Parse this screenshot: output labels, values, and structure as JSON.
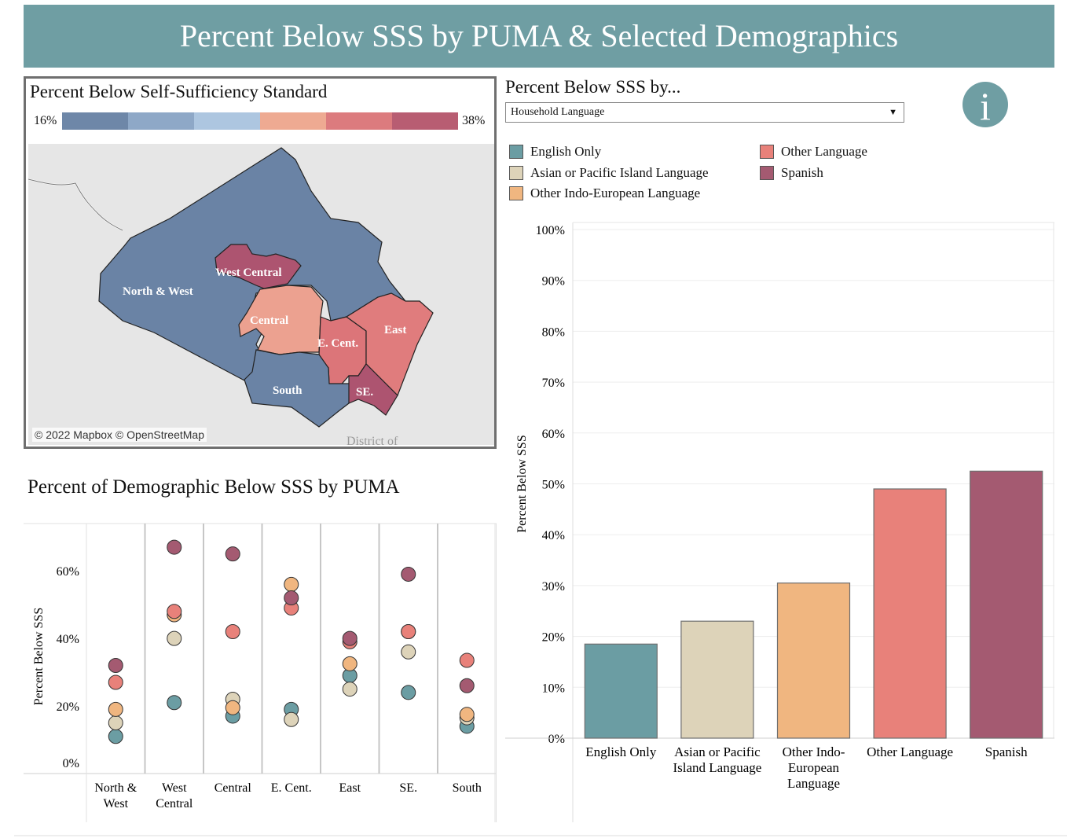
{
  "header": {
    "title": "Percent Below SSS by PUMA & Selected Demographics"
  },
  "map": {
    "title": "Percent Below Self-Sufficiency Standard",
    "legend_min": "16%",
    "legend_max": "38%",
    "ramp_colors": [
      "#6e87a8",
      "#8ea8c7",
      "#adc6e0",
      "#eeaa92",
      "#dc7b7e",
      "#b85d72"
    ],
    "credit": "© 2022 Mapbox  © OpenStreetMap",
    "faded_label": "District of",
    "regions": [
      {
        "label": "North & West",
        "color": "#6a83a5"
      },
      {
        "label": "West Central",
        "color": "#ad5470"
      },
      {
        "label": "Central",
        "color": "#eca190"
      },
      {
        "label": "E. Cent.",
        "color": "#dc7579"
      },
      {
        "label": "East",
        "color": "#e07c7d"
      },
      {
        "label": "South",
        "color": "#6a83a5"
      },
      {
        "label": "SE.",
        "color": "#ad5470"
      }
    ]
  },
  "selector": {
    "title": "Percent Below SSS by...",
    "selected": "Household Language"
  },
  "info": {
    "glyph": "i"
  },
  "legend": [
    {
      "label": "English Only",
      "color": "#6b9da3"
    },
    {
      "label": "Asian or Pacific Island Language",
      "color": "#ddd3b9"
    },
    {
      "label": "Other Indo-European Language",
      "color": "#f0b680"
    },
    {
      "label": "Other Language",
      "color": "#e8817a"
    },
    {
      "label": "Spanish",
      "color": "#a45a71"
    }
  ],
  "dot_section": {
    "title": "Percent of Demographic Below SSS by PUMA"
  },
  "chart_data": [
    {
      "type": "bar",
      "title": "Percent Below SSS by Household Language",
      "ylabel": "Percent Below SSS",
      "ylim": [
        0,
        100
      ],
      "yticks": [
        0,
        10,
        20,
        30,
        40,
        50,
        60,
        70,
        80,
        90,
        100
      ],
      "ytick_labels": [
        "0%",
        "10%",
        "20%",
        "30%",
        "40%",
        "50%",
        "60%",
        "70%",
        "80%",
        "90%",
        "100%"
      ],
      "categories": [
        [
          "English Only"
        ],
        [
          "Asian or Pacific",
          "Island Language"
        ],
        [
          "Other Indo-",
          "European",
          "Language"
        ],
        [
          "Other Language"
        ],
        [
          "Spanish"
        ]
      ],
      "values": [
        18.5,
        23,
        30.5,
        49,
        52.5
      ]
    },
    {
      "type": "scatter",
      "title": "Percent of Demographic Below SSS by PUMA",
      "ylabel": "Percent Below SSS",
      "ylim": [
        0,
        74
      ],
      "yticks": [
        0,
        20,
        40,
        60
      ],
      "ytick_labels": [
        "0%",
        "20%",
        "40%",
        "60%"
      ],
      "categories": [
        [
          "North &",
          "West"
        ],
        [
          "West",
          "Central"
        ],
        [
          "Central"
        ],
        [
          "E. Cent."
        ],
        [
          "East"
        ],
        [
          "SE."
        ],
        [
          "South"
        ]
      ],
      "series": [
        {
          "name": "Spanish",
          "values": [
            32,
            67,
            65,
            52,
            40,
            59,
            26
          ]
        },
        {
          "name": "Other Language",
          "values": [
            27,
            48,
            42,
            49,
            39,
            42,
            33.5
          ]
        },
        {
          "name": "Other Indo-European Language",
          "values": [
            19,
            47,
            19.5,
            56,
            32.5,
            42,
            17.5
          ]
        },
        {
          "name": "Asian or Pacific Island Language",
          "values": [
            15,
            40,
            22,
            16,
            25,
            36,
            16.5
          ]
        },
        {
          "name": "English Only",
          "values": [
            11,
            21,
            17,
            19,
            29,
            24,
            14
          ]
        }
      ]
    }
  ]
}
